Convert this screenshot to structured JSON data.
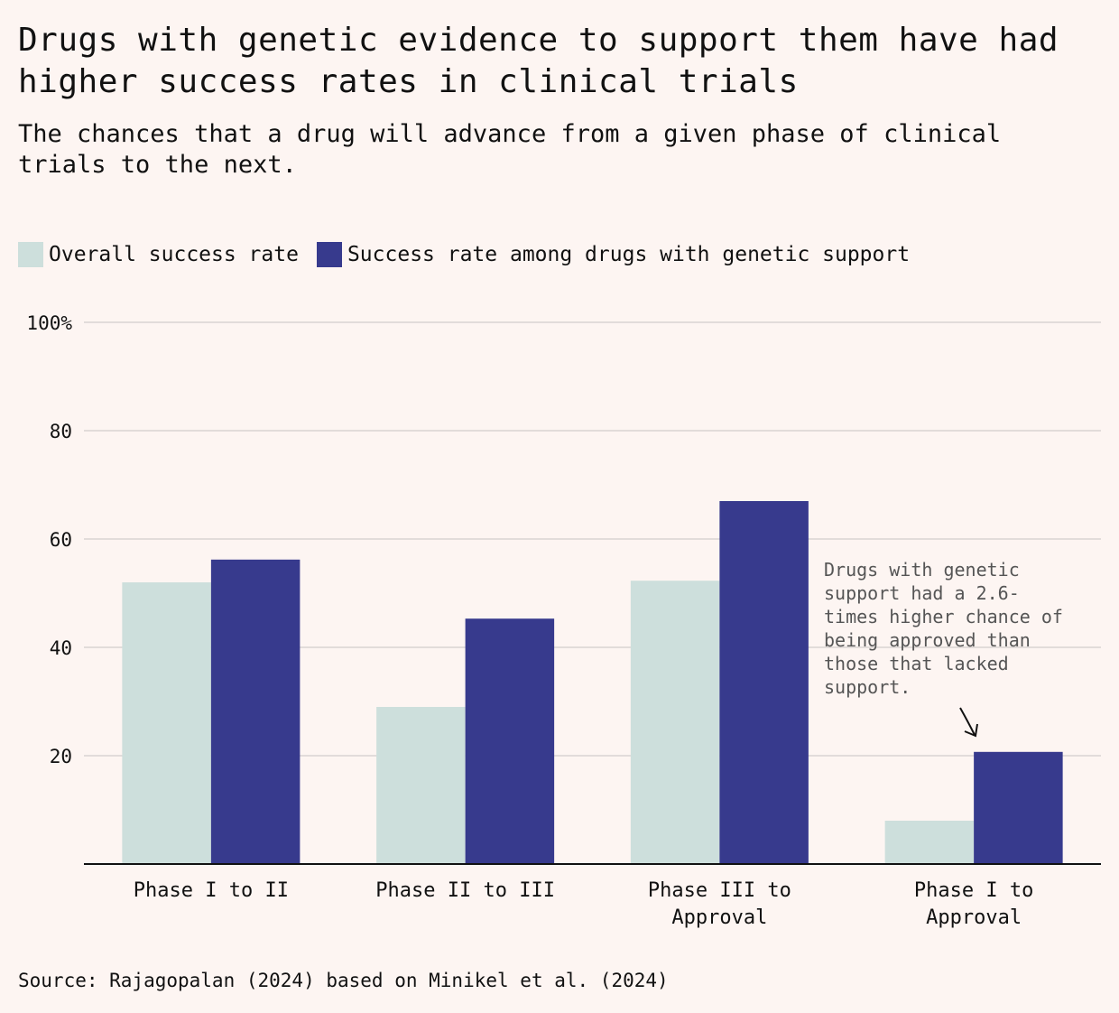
{
  "colors": {
    "background": "#fdf5f2",
    "overall": "#cddfdc",
    "genetic": "#373a8d",
    "grid": "#d9d4d2",
    "axis": "#111111"
  },
  "chart_data": {
    "type": "bar",
    "title": "Drugs with genetic evidence to support them have had higher success rates in clinical trials",
    "subtitle": "The chances that a drug will advance from a given phase of clinical trials to the next.",
    "categories": [
      [
        "Phase I to II"
      ],
      [
        "Phase II to III"
      ],
      [
        "Phase III to",
        "Approval"
      ],
      [
        "Phase I to",
        "Approval"
      ]
    ],
    "series": [
      {
        "name": "Overall success rate",
        "values": [
          52,
          29,
          52.3,
          8
        ]
      },
      {
        "name": "Success rate among drugs with genetic support",
        "values": [
          56.2,
          45.3,
          67,
          20.7
        ]
      }
    ],
    "ylim": [
      0,
      100
    ],
    "yticks": [
      20,
      40,
      60,
      80,
      100
    ],
    "ytick_labels": [
      "20",
      "40",
      "60",
      "80",
      "100%"
    ],
    "xlabel": "",
    "ylabel": "",
    "grid": true,
    "legend_position": "top-left",
    "annotation": {
      "category_index": 3,
      "lines": [
        "Drugs with genetic",
        "support had a 2.6-",
        "times higher chance of",
        "being approved than",
        "those that lacked",
        "support."
      ]
    },
    "source": "Source: Rajagopalan (2024) based on Minikel et al. (2024)"
  }
}
